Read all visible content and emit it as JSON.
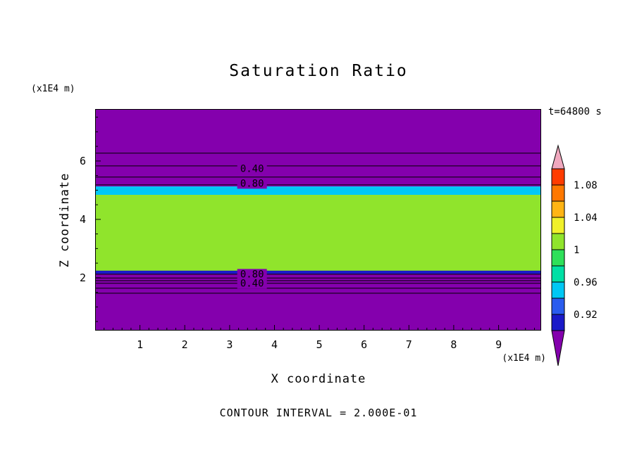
{
  "title": "Saturation Ratio",
  "annotations": {
    "time": "t=64800 s",
    "y_axis_unit": "(x1E4 m)",
    "x_axis_unit": "(x1E4 m)",
    "contour_note": "CONTOUR INTERVAL = 2.000E-01"
  },
  "axes": {
    "x_label": "X coordinate",
    "y_label": "Z coordinate",
    "x_tick_labels": [
      "1",
      "2",
      "3",
      "4",
      "5",
      "6",
      "7",
      "8",
      "9"
    ],
    "y_tick_labels": [
      "6",
      "4",
      "2"
    ]
  },
  "chart_data": {
    "type": "heatmap",
    "title": "Saturation Ratio",
    "xlabel": "X coordinate (x1E4 m)",
    "ylabel": "Z coordinate (x1E4 m)",
    "time_label": "t=64800 s",
    "contour_interval": 0.2,
    "x_range": [
      0,
      9.95
    ],
    "z_range": [
      0.19,
      7.78
    ],
    "x_ticks": [
      1,
      2,
      3,
      4,
      5,
      6,
      7,
      8,
      9
    ],
    "y_ticks": [
      2,
      4,
      6
    ],
    "field_description": "Saturation-ratio field uniform in x: undersaturated purple air above and below a saturated (S = 1) yellow-green layer, with thin cyan and navy transition layers at the layer edges.",
    "background_value": "< 0.90",
    "background_color": "#8400AD",
    "bands": [
      {
        "name": "cyan-transition-layer-top",
        "z_from": 4.84,
        "z_to": 5.13,
        "value": "0.94-0.96",
        "color": "#00C8F5"
      },
      {
        "name": "saturated-layer",
        "z_from": 2.24,
        "z_to": 4.84,
        "value": "1.00",
        "color": "#90E42C"
      },
      {
        "name": "navy-transition-layer-bottom",
        "z_from": 2.14,
        "z_to": 2.24,
        "value": "0.90-0.92",
        "color": "#1A1AC8"
      }
    ],
    "contour_lines": [
      {
        "value": 0.2,
        "z": 6.27
      },
      {
        "value": 0.4,
        "z": 5.83
      },
      {
        "value": 0.6,
        "z": 5.45
      },
      {
        "value": 0.8,
        "z": 5.18
      },
      {
        "value": 0.8,
        "z": 2.12
      },
      {
        "value": 0.6,
        "z": 1.99
      },
      {
        "value": null,
        "z": 1.9
      },
      {
        "value": 0.4,
        "z": 1.81
      },
      {
        "value": null,
        "z": 1.64
      },
      {
        "value": 0.2,
        "z": 1.47
      }
    ],
    "contour_labels": [
      {
        "text": "0.40",
        "x": 3.5,
        "z": 5.73
      },
      {
        "text": "0.80",
        "x": 3.5,
        "z": 5.23
      },
      {
        "text": "0.80",
        "x": 3.5,
        "z": 2.12
      },
      {
        "text": "0.40",
        "x": 3.5,
        "z": 1.81
      }
    ],
    "colorbar": {
      "min": 0.9,
      "max": 1.1,
      "segment_step": 0.02,
      "segment_colors": [
        "#1A1AC8",
        "#2A5CEE",
        "#00C8F5",
        "#00E0A5",
        "#2EE05A",
        "#90E42C",
        "#F0F02A",
        "#FFB414",
        "#FF7800",
        "#FF3C00"
      ],
      "below_min_color": "#8400AD",
      "above_max_color": "#F0A8BE",
      "tick_labels": [
        {
          "text": "1.08",
          "value": 1.08
        },
        {
          "text": "1.04",
          "value": 1.04
        },
        {
          "text": "1",
          "value": 1.0
        },
        {
          "text": "0.96",
          "value": 0.96
        },
        {
          "text": "0.92",
          "value": 0.92
        }
      ]
    }
  }
}
